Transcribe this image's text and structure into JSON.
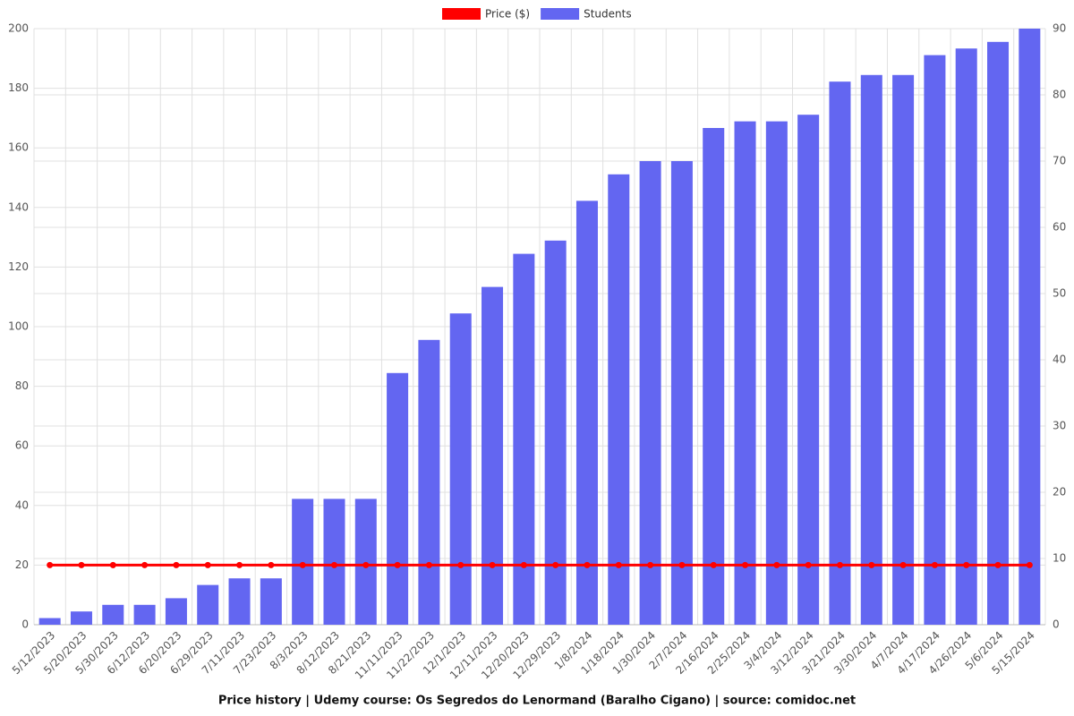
{
  "chart_data": {
    "type": "bar",
    "title": "Price history | Udemy course: Os Segredos do Lenormand (Baralho Cigano) | source: comidoc.net",
    "categories": [
      "5/12/2023",
      "5/20/2023",
      "5/30/2023",
      "6/12/2023",
      "6/20/2023",
      "6/29/2023",
      "7/11/2023",
      "7/23/2023",
      "8/3/2023",
      "8/12/2023",
      "8/21/2023",
      "11/11/2023",
      "11/22/2023",
      "12/1/2023",
      "12/11/2023",
      "12/20/2023",
      "12/29/2023",
      "1/8/2024",
      "1/18/2024",
      "1/30/2024",
      "2/7/2024",
      "2/16/2024",
      "2/25/2024",
      "3/4/2024",
      "3/12/2024",
      "3/21/2024",
      "3/30/2024",
      "4/7/2024",
      "4/17/2024",
      "4/26/2024",
      "5/6/2024",
      "5/15/2024"
    ],
    "series": [
      {
        "name": "Price ($)",
        "type": "line",
        "color": "#ff0000",
        "values": [
          20,
          20,
          20,
          20,
          20,
          20,
          20,
          20,
          20,
          20,
          20,
          20,
          20,
          20,
          20,
          20,
          20,
          20,
          20,
          20,
          20,
          20,
          20,
          20,
          20,
          20,
          20,
          20,
          20,
          20,
          20,
          20
        ]
      },
      {
        "name": "Students",
        "type": "bar",
        "axis": "y2",
        "color": "#6366f1",
        "values": [
          1,
          2,
          3,
          3,
          4,
          6,
          7,
          7,
          19,
          19,
          19,
          38,
          43,
          47,
          51,
          56,
          58,
          64,
          68,
          70,
          70,
          75,
          76,
          76,
          77,
          82,
          83,
          83,
          86,
          87,
          88,
          90
        ]
      }
    ],
    "ylim": [
      0,
      200
    ],
    "yticks": [
      0,
      20,
      40,
      60,
      80,
      100,
      120,
      140,
      160,
      180,
      200
    ],
    "y2lim": [
      0,
      90
    ],
    "y2ticks": [
      0,
      10,
      20,
      30,
      40,
      50,
      60,
      70,
      80,
      90
    ],
    "grid": true,
    "legend": "top"
  }
}
